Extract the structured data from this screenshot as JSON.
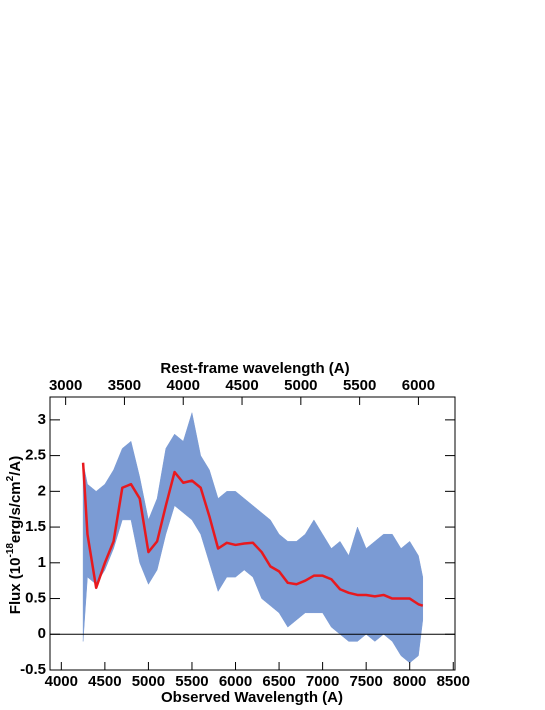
{
  "chart_data": {
    "type": "spectrum",
    "xlabel": "Observed Wavelength (A)",
    "x2label": "Rest-frame wavelength (A)",
    "ylabel_parts": [
      "Flux (10",
      "-18",
      "erg/s/cm",
      "2",
      "/A)"
    ],
    "xlim": [
      3870,
      8520
    ],
    "xticks": [
      4000,
      4500,
      5000,
      5500,
      6000,
      6500,
      7000,
      7500,
      8000,
      8500
    ],
    "x2lim": [
      2867,
      6311
    ],
    "x2ticks": [
      3000,
      3500,
      4000,
      4500,
      5000,
      5500,
      6000
    ],
    "ylim": [
      -0.5,
      3.32
    ],
    "yticks": [
      -0.5,
      0,
      0.5,
      1,
      1.5,
      2,
      2.5,
      3
    ],
    "x": [
      4250,
      4300,
      4400,
      4500,
      4600,
      4700,
      4800,
      4900,
      5000,
      5100,
      5200,
      5300,
      5400,
      5500,
      5600,
      5700,
      5800,
      5900,
      6000,
      6100,
      6200,
      6300,
      6400,
      6500,
      6600,
      6700,
      6800,
      6900,
      7000,
      7100,
      7200,
      7300,
      7400,
      7500,
      7600,
      7700,
      7800,
      7900,
      8000,
      8100,
      8150
    ],
    "band": {
      "color": "#7b9bd4",
      "lower": [
        -0.1,
        0.8,
        0.7,
        0.9,
        1.2,
        1.6,
        1.6,
        1.0,
        0.7,
        0.9,
        1.4,
        1.8,
        1.7,
        1.6,
        1.4,
        1.0,
        0.6,
        0.8,
        0.8,
        0.9,
        0.8,
        0.5,
        0.4,
        0.3,
        0.1,
        0.2,
        0.3,
        0.3,
        0.3,
        0.1,
        0.0,
        -0.1,
        -0.1,
        0.0,
        -0.1,
        0.0,
        -0.1,
        -0.3,
        -0.4,
        -0.3,
        0.2
      ],
      "upper": [
        2.4,
        2.1,
        2.0,
        2.1,
        2.3,
        2.6,
        2.7,
        2.2,
        1.6,
        1.9,
        2.6,
        2.8,
        2.7,
        3.1,
        2.5,
        2.3,
        1.9,
        2.0,
        2.0,
        1.9,
        1.8,
        1.7,
        1.6,
        1.4,
        1.3,
        1.3,
        1.4,
        1.6,
        1.4,
        1.2,
        1.3,
        1.1,
        1.5,
        1.2,
        1.3,
        1.4,
        1.4,
        1.2,
        1.3,
        1.1,
        0.8
      ]
    },
    "line": {
      "color": "#e8191e",
      "values": [
        2.4,
        1.4,
        0.65,
        1.0,
        1.3,
        2.05,
        2.1,
        1.9,
        1.15,
        1.3,
        1.8,
        2.27,
        2.12,
        2.15,
        2.05,
        1.65,
        1.2,
        1.28,
        1.25,
        1.27,
        1.28,
        1.15,
        0.95,
        0.88,
        0.72,
        0.7,
        0.75,
        0.82,
        0.82,
        0.77,
        0.63,
        0.58,
        0.55,
        0.55,
        0.53,
        0.55,
        0.5,
        0.5,
        0.5,
        0.42,
        0.4
      ]
    }
  }
}
